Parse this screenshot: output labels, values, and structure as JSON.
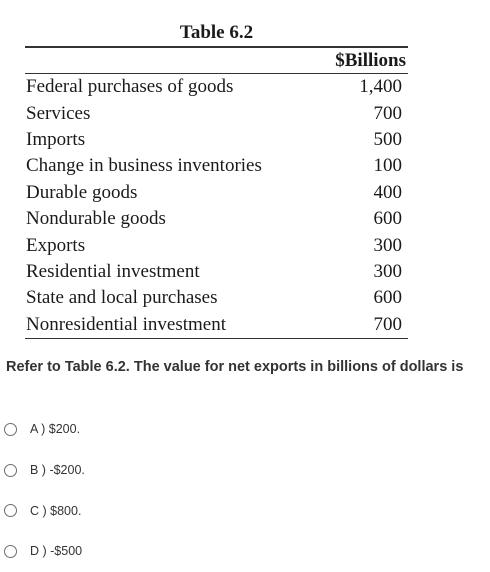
{
  "table": {
    "title": "Table 6.2",
    "column_header": "$Billions",
    "rows": [
      {
        "label": "Federal purchases of goods",
        "value": "1,400"
      },
      {
        "label": "Services",
        "value": "700"
      },
      {
        "label": "Imports",
        "value": "500"
      },
      {
        "label": "Change in business inventories",
        "value": "100"
      },
      {
        "label": "Durable goods",
        "value": "400"
      },
      {
        "label": "Nondurable goods",
        "value": "600"
      },
      {
        "label": "Exports",
        "value": "300"
      },
      {
        "label": "Residential investment",
        "value": "300"
      },
      {
        "label": "State and local purchases",
        "value": "600"
      },
      {
        "label": "Nonresidential investment",
        "value": "700"
      }
    ]
  },
  "question": {
    "text": "Refer to Table 6.2. The value for net exports in billions of dollars is"
  },
  "options": [
    {
      "label": "A ) $200."
    },
    {
      "label": "B ) -$200."
    },
    {
      "label": "C ) $800."
    },
    {
      "label": "D ) -$500"
    }
  ]
}
